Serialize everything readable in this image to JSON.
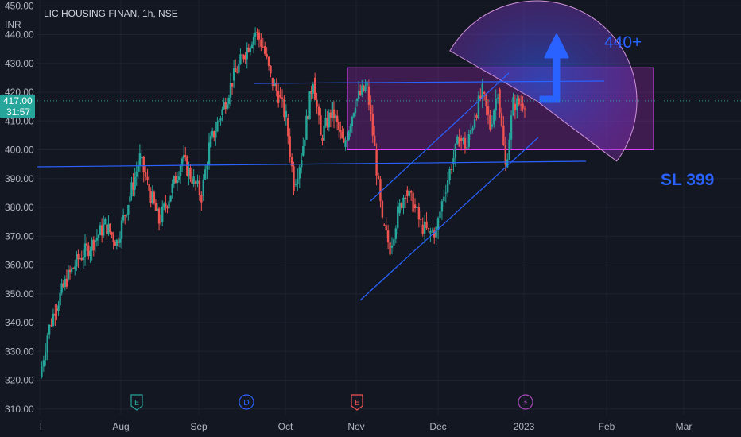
{
  "header": {
    "currency": "INR",
    "title": "LIC HOUSING FINAN, 1h, NSE"
  },
  "price_tag": {
    "price": "417.00",
    "countdown": "31:57"
  },
  "annotations": {
    "target": "440+",
    "stop_loss": "SL 399"
  },
  "event_markers": [
    {
      "letter": "E",
      "color": "#26a69a",
      "after_month": 1
    },
    {
      "letter": "D",
      "color": "#2962ff",
      "after_month": 2
    },
    {
      "letter": "E",
      "color": "#ef5350",
      "after_month": 4
    },
    {
      "letter": "⚡",
      "color": "#ab47bc",
      "after_month": 6
    }
  ],
  "colors": {
    "background": "#131722",
    "up": "#26a69a",
    "down": "#ef5350",
    "trendline": "#2962ff",
    "zone": "#9c27b0",
    "target_arc": "#ce93d8",
    "price_line": "#26a69a"
  },
  "chart_data": {
    "type": "candlestick",
    "title": "LIC HOUSING FINAN, 1h, NSE",
    "y_axis_label": "INR",
    "ylim": [
      308,
      452
    ],
    "y_ticks": [
      "310.00",
      "320.00",
      "330.00",
      "340.00",
      "350.00",
      "360.00",
      "370.00",
      "380.00",
      "390.00",
      "400.00",
      "410.00",
      "420.00",
      "430.00",
      "440.00",
      "450.00"
    ],
    "x_ticks": [
      "Jul",
      "Aug",
      "Sep",
      "Oct",
      "Nov",
      "Dec",
      "2023",
      "Feb",
      "Mar"
    ],
    "last_price": 417.0,
    "price_path": [
      [
        0,
        321
      ],
      [
        2,
        336
      ],
      [
        4,
        345
      ],
      [
        7,
        355
      ],
      [
        10,
        362
      ],
      [
        14,
        368
      ],
      [
        17,
        374
      ],
      [
        20,
        368
      ],
      [
        23,
        382
      ],
      [
        26,
        397
      ],
      [
        28,
        388
      ],
      [
        31,
        375
      ],
      [
        34,
        385
      ],
      [
        37,
        397
      ],
      [
        40,
        389
      ],
      [
        42,
        384
      ],
      [
        44,
        401
      ],
      [
        47,
        412
      ],
      [
        50,
        424
      ],
      [
        53,
        433
      ],
      [
        56,
        441
      ],
      [
        58,
        436
      ],
      [
        60,
        425
      ],
      [
        62,
        419
      ],
      [
        64,
        411
      ],
      [
        66,
        388
      ],
      [
        68,
        398
      ],
      [
        71,
        425
      ],
      [
        73,
        404
      ],
      [
        76,
        414
      ],
      [
        79,
        401
      ],
      [
        82,
        417
      ],
      [
        85,
        422
      ],
      [
        87,
        400
      ],
      [
        89,
        374
      ],
      [
        91,
        366
      ],
      [
        93,
        378
      ],
      [
        95,
        386
      ],
      [
        97,
        381
      ],
      [
        99,
        374
      ],
      [
        101,
        371
      ],
      [
        103,
        372
      ],
      [
        105,
        385
      ],
      [
        107,
        395
      ],
      [
        109,
        404
      ],
      [
        111,
        401
      ],
      [
        113,
        412
      ],
      [
        115,
        420
      ],
      [
        117,
        408
      ],
      [
        119,
        421
      ],
      [
        121,
        394
      ],
      [
        123,
        416
      ],
      [
        125,
        416
      ],
      [
        126,
        417
      ]
    ],
    "channel_lines": [
      {
        "name": "support",
        "points": [
          [
            0,
            397.5
          ],
          [
            87,
            399.5
          ]
        ]
      },
      {
        "name": "resistance",
        "points": [
          [
            71,
            429
          ],
          [
            110,
            429
          ]
        ]
      },
      {
        "name": "channel-top",
        "points": [
          [
            89,
            385
          ],
          [
            117,
            432
          ]
        ]
      },
      {
        "name": "channel-bottom",
        "points": [
          [
            89,
            349
          ],
          [
            124,
            410
          ]
        ]
      }
    ],
    "resistance_zone": {
      "x": [
        85,
        145
      ],
      "y": [
        400,
        428.5
      ]
    },
    "target_arc": {
      "center": [
        128,
        401
      ],
      "radius_in_price": 37
    },
    "target_arrow": {
      "x": 130,
      "from": 422,
      "to": 438
    }
  }
}
